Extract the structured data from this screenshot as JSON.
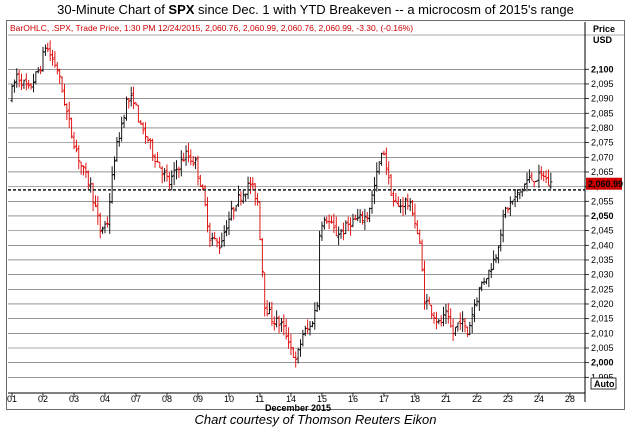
{
  "title": {
    "prefix": "30-Minute Chart of ",
    "symbol": "SPX",
    "suffix": " since Dec. 1 with YTD Breakeven -- a microcosm of 2015's range"
  },
  "caption": "Chart courtesy of Thomson Reuters Eikon",
  "colors": {
    "up": "#000000",
    "down": "#e00000",
    "breakeven": "#333333",
    "price_box": "#cc0000",
    "grid": "#555555"
  },
  "chart_data": {
    "type": "ohlc",
    "legend_text": "BarOHLC, .SPX, Trade Price, 1:30 PM 12/24/2015, 2,060.76, 2,060.99, 2,060.76, 2,060.99, -3.30, (-0.16%)",
    "ylabel": "Price\nUSD",
    "ylabel_lines": [
      "Price",
      "USD"
    ],
    "xlabel": "December 2015",
    "ylim": [
      1990,
      2111
    ],
    "yticks": [
      1995,
      2000,
      2005,
      2010,
      2015,
      2020,
      2025,
      2030,
      2035,
      2040,
      2045,
      2050,
      2055,
      2060,
      2065,
      2070,
      2075,
      2080,
      2085,
      2090,
      2095,
      2100
    ],
    "ytick_labels": [
      "1,995",
      "2,000",
      "2,005",
      "2,010",
      "2,015",
      "2,020",
      "2,025",
      "2,030",
      "2,035",
      "2,040",
      "2,045",
      "2,050",
      "2,055",
      "2,060",
      "2,065",
      "2,070",
      "2,075",
      "2,080",
      "2,085",
      "2,090",
      "2,095",
      "2,100"
    ],
    "bold_ticks": [
      2000,
      2050,
      2100
    ],
    "x_ticks": [
      {
        "label": "01",
        "bar": 0
      },
      {
        "label": "02",
        "bar": 13
      },
      {
        "label": "03",
        "bar": 26
      },
      {
        "label": "04",
        "bar": 39
      },
      {
        "label": "07",
        "bar": 52
      },
      {
        "label": "08",
        "bar": 65
      },
      {
        "label": "09",
        "bar": 78
      },
      {
        "label": "10",
        "bar": 91
      },
      {
        "label": "11",
        "bar": 104
      },
      {
        "label": "14",
        "bar": 117
      },
      {
        "label": "15",
        "bar": 130
      },
      {
        "label": "16",
        "bar": 143
      },
      {
        "label": "17",
        "bar": 156
      },
      {
        "label": "18",
        "bar": 169
      },
      {
        "label": "21",
        "bar": 182
      },
      {
        "label": "22",
        "bar": 195
      },
      {
        "label": "23",
        "bar": 208
      },
      {
        "label": "24",
        "bar": 221
      },
      {
        "label": "28",
        "bar": 234
      }
    ],
    "total_bar_slots": 242,
    "breakeven": 2058.9,
    "last_price": 2060.99,
    "last_price_label": "2,060.99",
    "auto_label": "Auto",
    "waypoints": [
      [
        0,
        2090
      ],
      [
        3,
        2098
      ],
      [
        8,
        2093
      ],
      [
        13,
        2101
      ],
      [
        15,
        2108
      ],
      [
        17,
        2105
      ],
      [
        20,
        2100
      ],
      [
        26,
        2078
      ],
      [
        30,
        2067
      ],
      [
        34,
        2060
      ],
      [
        38,
        2045
      ],
      [
        41,
        2048
      ],
      [
        44,
        2070
      ],
      [
        49,
        2089
      ],
      [
        52,
        2090
      ],
      [
        55,
        2080
      ],
      [
        58,
        2076
      ],
      [
        61,
        2070
      ],
      [
        63,
        2067
      ],
      [
        67,
        2061
      ],
      [
        70,
        2066
      ],
      [
        74,
        2071
      ],
      [
        78,
        2068
      ],
      [
        81,
        2058
      ],
      [
        84,
        2043
      ],
      [
        88,
        2040
      ],
      [
        91,
        2047
      ],
      [
        95,
        2055
      ],
      [
        98,
        2058
      ],
      [
        101,
        2061
      ],
      [
        104,
        2055
      ],
      [
        107,
        2020
      ],
      [
        110,
        2015
      ],
      [
        114,
        2013
      ],
      [
        117,
        2008
      ],
      [
        120,
        2000
      ],
      [
        123,
        2010
      ],
      [
        126,
        2012
      ],
      [
        129,
        2020
      ],
      [
        130,
        2045
      ],
      [
        133,
        2049
      ],
      [
        137,
        2044
      ],
      [
        140,
        2045
      ],
      [
        143,
        2048
      ],
      [
        147,
        2049
      ],
      [
        150,
        2050
      ],
      [
        153,
        2060
      ],
      [
        155,
        2068
      ],
      [
        157,
        2072
      ],
      [
        159,
        2062
      ],
      [
        161,
        2055
      ],
      [
        163,
        2053
      ],
      [
        166,
        2055
      ],
      [
        169,
        2052
      ],
      [
        172,
        2040
      ],
      [
        174,
        2022
      ],
      [
        177,
        2018
      ],
      [
        180,
        2013
      ],
      [
        183,
        2016
      ],
      [
        186,
        2010
      ],
      [
        189,
        2015
      ],
      [
        192,
        2010
      ],
      [
        195,
        2020
      ],
      [
        198,
        2027
      ],
      [
        201,
        2031
      ],
      [
        204,
        2037
      ],
      [
        206,
        2045
      ],
      [
        208,
        2052
      ],
      [
        211,
        2055
      ],
      [
        214,
        2058
      ],
      [
        217,
        2062
      ],
      [
        220,
        2063
      ],
      [
        222,
        2063
      ],
      [
        224,
        2064
      ],
      [
        226,
        2061
      ]
    ]
  }
}
